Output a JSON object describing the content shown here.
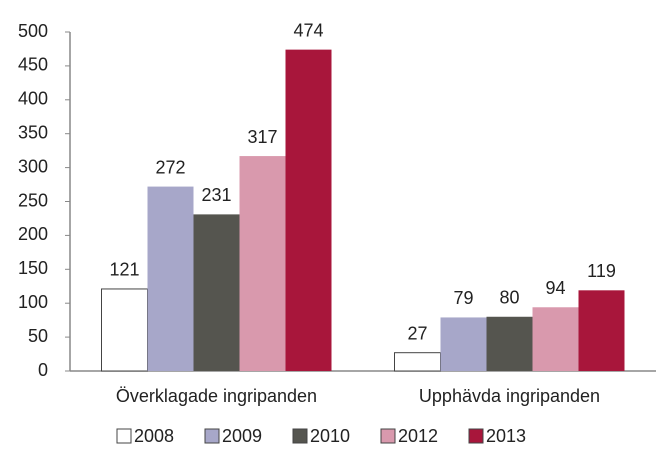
{
  "chart_data": {
    "type": "bar",
    "categories": [
      "Överklagade ingripanden",
      "Upphävda ingripanden"
    ],
    "series": [
      {
        "name": "2008",
        "color": "#ffffff",
        "values": [
          121,
          27
        ]
      },
      {
        "name": "2009",
        "color": "#a7a7c9",
        "values": [
          272,
          79
        ]
      },
      {
        "name": "2010",
        "color": "#55554f",
        "values": [
          231,
          80
        ]
      },
      {
        "name": "2012",
        "color": "#d999ad",
        "values": [
          317,
          94
        ]
      },
      {
        "name": "2013",
        "color": "#a8163b",
        "values": [
          474,
          119
        ]
      }
    ],
    "ylim": [
      0,
      500
    ],
    "yticks": [
      0,
      50,
      100,
      150,
      200,
      250,
      300,
      350,
      400,
      450,
      500
    ],
    "grid": false,
    "legend": "bottom"
  }
}
